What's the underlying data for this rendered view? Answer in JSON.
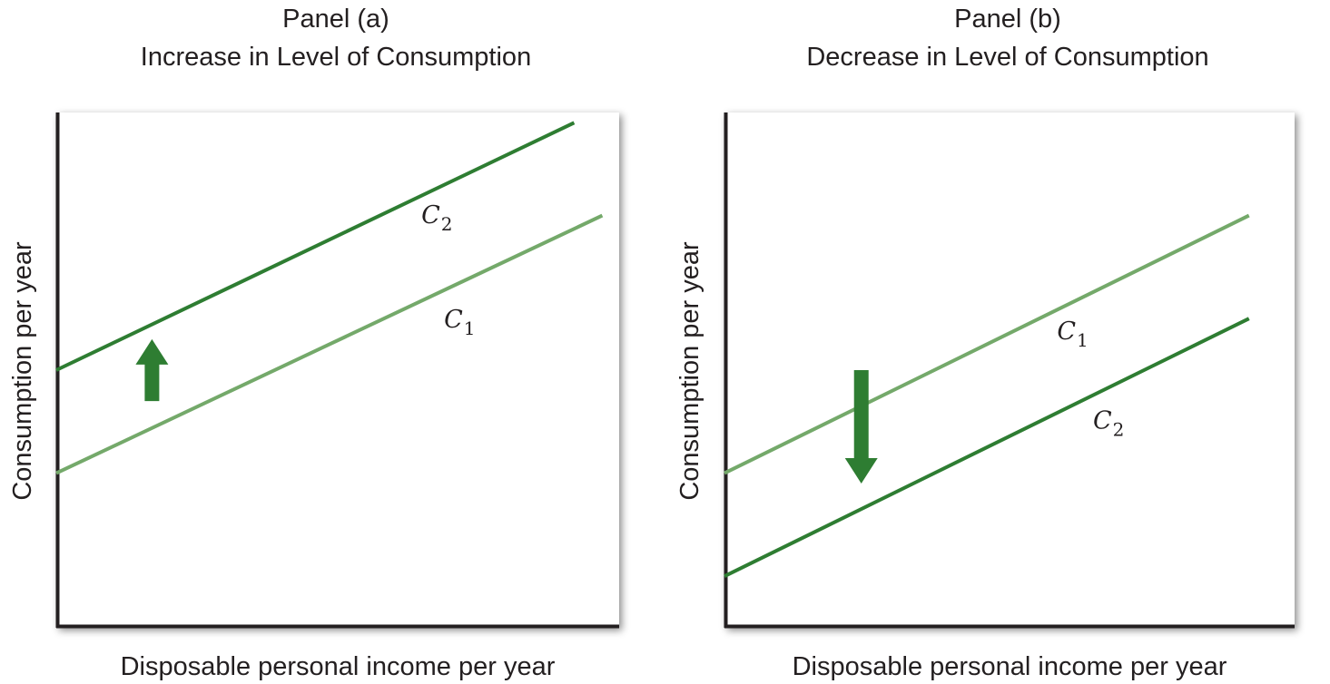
{
  "chart_data": [
    {
      "type": "line",
      "panel_label": "Panel (a)",
      "title": "Increase in Level of Consumption",
      "xlabel": "Disposable personal income per year",
      "ylabel": "Consumption per year",
      "xlim": [
        0,
        10
      ],
      "ylim": [
        0,
        10
      ],
      "grid": false,
      "series": [
        {
          "name": "C",
          "subscript": "2",
          "color": "#2e7d32",
          "x": [
            0,
            9.2
          ],
          "y": [
            5.0,
            9.8
          ]
        },
        {
          "name": "C",
          "subscript": "1",
          "color": "#74a96a",
          "x": [
            0,
            9.7
          ],
          "y": [
            3.0,
            8.0
          ]
        }
      ],
      "annotations": [
        {
          "type": "arrow",
          "direction": "up",
          "color": "#2e7d32",
          "x": 1.7,
          "y_from": 4.4,
          "y_to": 5.6
        }
      ]
    },
    {
      "type": "line",
      "panel_label": "Panel (b)",
      "title": "Decrease in Level of Consumption",
      "xlabel": "Disposable personal income per year",
      "ylabel": "Consumption per year",
      "xlim": [
        0,
        10
      ],
      "ylim": [
        0,
        10
      ],
      "grid": false,
      "series": [
        {
          "name": "C",
          "subscript": "1",
          "color": "#74a96a",
          "x": [
            0,
            9.2
          ],
          "y": [
            3.0,
            8.0
          ]
        },
        {
          "name": "C",
          "subscript": "2",
          "color": "#2e7d32",
          "x": [
            0,
            9.2
          ],
          "y": [
            1.0,
            6.0
          ]
        }
      ],
      "annotations": [
        {
          "type": "arrow",
          "direction": "down",
          "color": "#2e7d32",
          "x": 2.4,
          "y_from": 5.0,
          "y_to": 2.8
        }
      ]
    }
  ]
}
